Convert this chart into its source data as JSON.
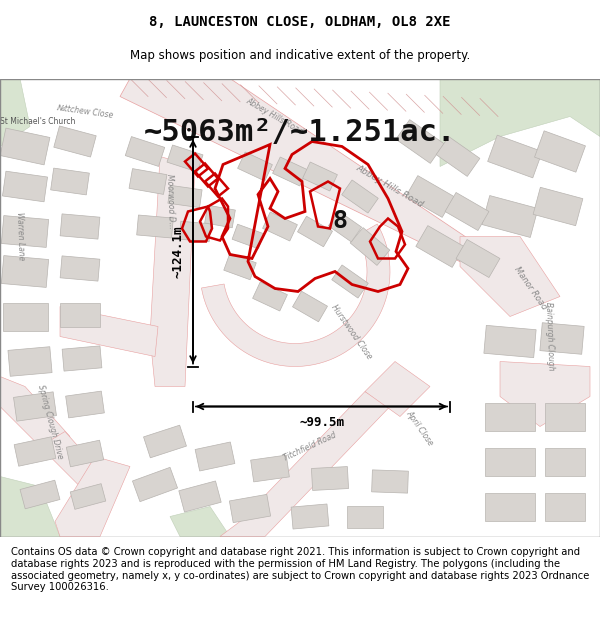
{
  "title_line1": "8, LAUNCESTON CLOSE, OLDHAM, OL8 2XE",
  "title_line2": "Map shows position and indicative extent of the property.",
  "area_text": "~5063m²/~1.251ac.",
  "label_number": "8",
  "dim_horizontal": "~99.5m",
  "dim_vertical": "~124.1m",
  "footer_text": "Contains OS data © Crown copyright and database right 2021. This information is subject to Crown copyright and database rights 2023 and is reproduced with the permission of HM Land Registry. The polygons (including the associated geometry, namely x, y co-ordinates) are subject to Crown copyright and database rights 2023 Ordnance Survey 100026316.",
  "map_bg": "#f7f4f2",
  "road_fill": "#f0e8e8",
  "road_edge": "#e8a0a0",
  "bldg_fill": "#d8d4d0",
  "bldg_edge": "#b8b4b0",
  "green_fill": "#d8e4d0",
  "green_edge": "#c0d0b8",
  "prop_edge": "#cc0000",
  "prop_fill": "none",
  "hatched_road_fill": "#e8d8d8",
  "text_road": "#b09090",
  "text_label": "#333333",
  "white": "#ffffff",
  "title_fs": 10,
  "subtitle_fs": 8.5,
  "area_fs": 22,
  "num_fs": 18,
  "dim_fs": 9,
  "footer_fs": 7.2,
  "road_label_fs": 6.5,
  "map_label_fs": 6
}
